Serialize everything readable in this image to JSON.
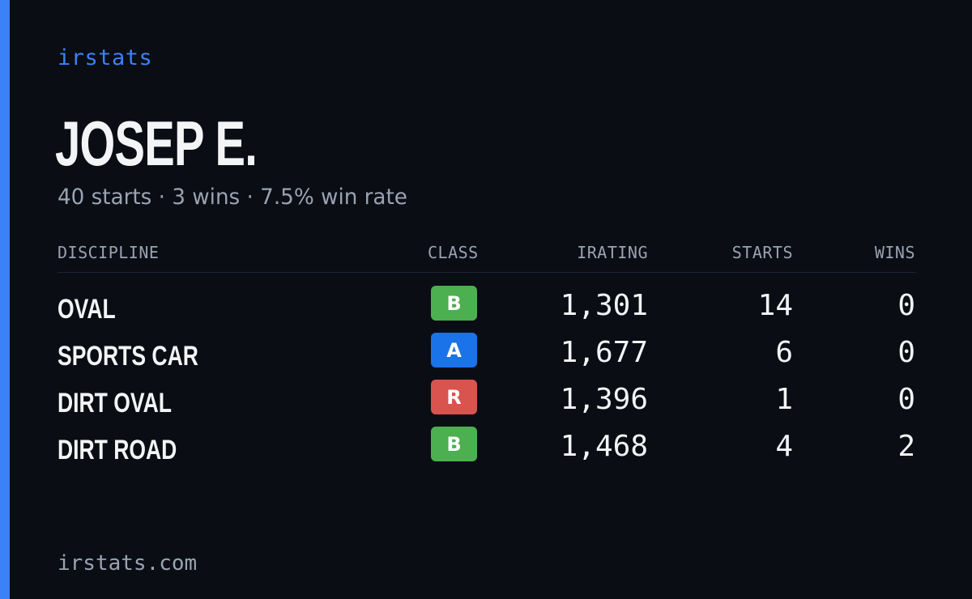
{
  "brand": "irstats",
  "driver_name": "JOSEP E.",
  "summary": "40 starts · 3 wins · 7.5% win rate",
  "table": {
    "headers": {
      "discipline": "DISCIPLINE",
      "class": "CLASS",
      "irating": "IRATING",
      "starts": "STARTS",
      "wins": "WINS"
    },
    "rows": [
      {
        "discipline": "OVAL",
        "class": "B",
        "class_color": "#4caf50",
        "irating": "1,301",
        "starts": "14",
        "wins": "0"
      },
      {
        "discipline": "SPORTS CAR",
        "class": "A",
        "class_color": "#1a73e8",
        "irating": "1,677",
        "starts": "6",
        "wins": "0"
      },
      {
        "discipline": "DIRT OVAL",
        "class": "R",
        "class_color": "#d9534f",
        "irating": "1,396",
        "starts": "1",
        "wins": "0"
      },
      {
        "discipline": "DIRT ROAD",
        "class": "B",
        "class_color": "#4caf50",
        "irating": "1,468",
        "starts": "4",
        "wins": "2"
      }
    ]
  },
  "footer": "irstats.com",
  "colors": {
    "accent": "#3b82f6",
    "background": "#0a0d14",
    "text": "#f3f4f6",
    "muted": "#9aa3b2"
  }
}
